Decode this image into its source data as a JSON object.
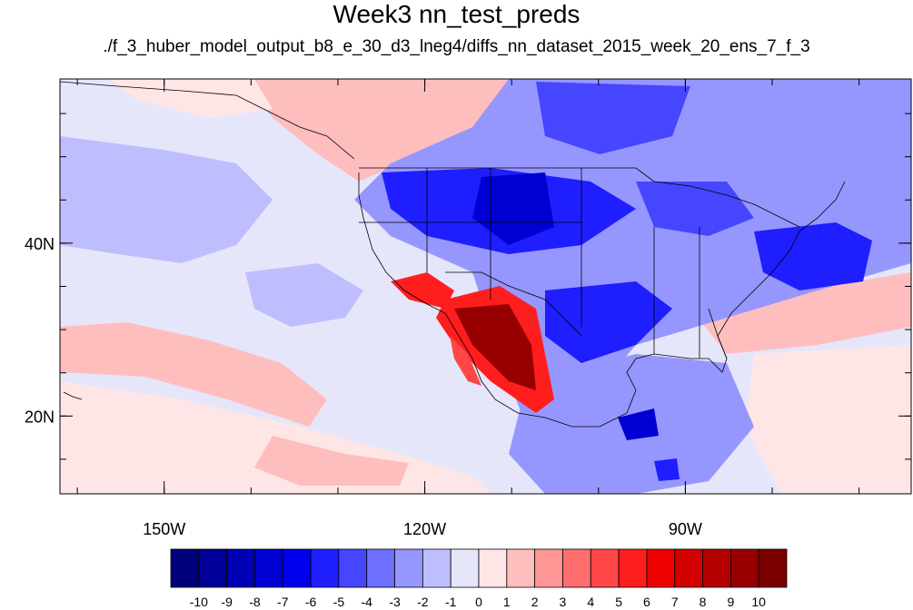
{
  "title": "Week3 nn_test_preds",
  "subtitle": "./f_3_huber_model_output_b8_e_30_d3_lneg4/diffs_nn_dataset_2015_week_20_ens_7_f_3",
  "map": {
    "lon_range": [
      -162,
      -64
    ],
    "lat_range": [
      11,
      59
    ],
    "lon_ticks": [
      {
        "value": -150,
        "label": "150W"
      },
      {
        "value": -120,
        "label": "120W"
      },
      {
        "value": -90,
        "label": "90W"
      }
    ],
    "lat_ticks": [
      {
        "value": 40,
        "label": "40N"
      },
      {
        "value": 20,
        "label": "20N"
      }
    ]
  },
  "colorbar": {
    "labels": [
      "-10",
      "-9",
      "-8",
      "-7",
      "-6",
      "-5",
      "-4",
      "-3",
      "-2",
      "-1",
      "0",
      "1",
      "2",
      "3",
      "4",
      "5",
      "6",
      "7",
      "8",
      "9",
      "10"
    ],
    "colors": [
      "#00007a",
      "#000096",
      "#0000b4",
      "#0000d2",
      "#0000ee",
      "#1e1eff",
      "#4646ff",
      "#6e6eff",
      "#9696ff",
      "#bebeff",
      "#e6e6fa",
      "#ffe6e6",
      "#ffbebe",
      "#ff9696",
      "#ff6e6e",
      "#ff4646",
      "#ff1e1e",
      "#ee0000",
      "#d20000",
      "#b40000",
      "#960000",
      "#7a0000"
    ]
  }
}
